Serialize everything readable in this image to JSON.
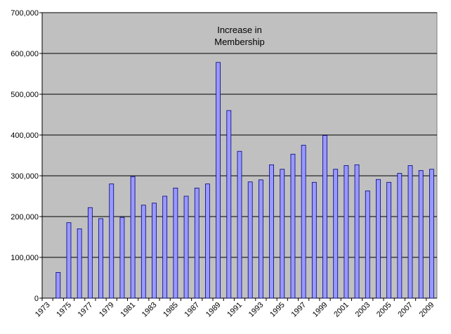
{
  "chart_data": {
    "type": "bar",
    "title": [
      "Increase in",
      "Membership"
    ],
    "categories": [
      "1973",
      null,
      "1975",
      null,
      "1977",
      null,
      "1979",
      null,
      "1981",
      null,
      "1983",
      null,
      "1985",
      null,
      "1987",
      null,
      "1989",
      null,
      "1991",
      null,
      "1993",
      null,
      "1995",
      null,
      "1997",
      null,
      "1999",
      null,
      "2001",
      null,
      "2003",
      null,
      "2005",
      null,
      "2007",
      null,
      "2009"
    ],
    "values": [
      null,
      63000,
      185000,
      170000,
      222000,
      195000,
      280000,
      198000,
      298000,
      228000,
      233000,
      250000,
      270000,
      250000,
      270000,
      280000,
      578000,
      460000,
      360000,
      285000,
      290000,
      327000,
      316000,
      353000,
      375000,
      284000,
      399000,
      316000,
      325000,
      327000,
      263000,
      291000,
      284000,
      306000,
      325000,
      313000,
      316000
    ],
    "color": "#9999ff",
    "ylim": [
      0,
      700000
    ],
    "yticks": [
      0,
      {
        "value": 100000,
        "label": "100,000"
      },
      {
        "value": 200000,
        "label": "200,000"
      },
      {
        "value": 300000,
        "label": "300,000"
      },
      {
        "value": 400000,
        "label": "400,000"
      },
      {
        "value": 500000,
        "label": "500,000"
      },
      {
        "value": 600000,
        "label": "600,000"
      },
      {
        "value": 700000,
        "label": "700,000"
      }
    ],
    "grid": true
  }
}
